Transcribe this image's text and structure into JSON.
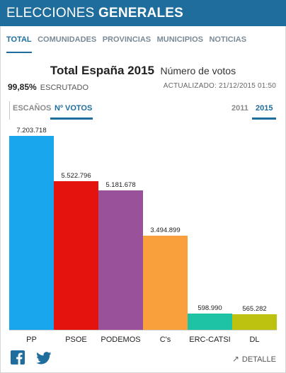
{
  "header": {
    "title_light": "ELECCIONES",
    "title_bold": "GENERALES"
  },
  "tabs": [
    {
      "label": "TOTAL",
      "active": true
    },
    {
      "label": "COMUNIDADES",
      "active": false
    },
    {
      "label": "PROVINCIAS",
      "active": false
    },
    {
      "label": "MUNICIPIOS",
      "active": false
    },
    {
      "label": "NOTICIAS",
      "active": false
    }
  ],
  "summary": {
    "title": "Total España 2015",
    "subtitle": "Número de votos",
    "scrutiny_pct": "99,85%",
    "scrutiny_label": "ESCRUTADO",
    "updated": "ACTUALIZADO: 21/12/2015 01:50"
  },
  "view_toggle": {
    "seats_label": "ESCAÑOS",
    "votes_label": "Nº VOTOS",
    "selected": "votes"
  },
  "year_toggle": {
    "options": [
      "2011",
      "2015"
    ],
    "selected": "2015"
  },
  "chart_data": {
    "type": "bar",
    "title": "Total España 2015",
    "subtitle": "Número de votos",
    "categories": [
      "PP",
      "PSOE",
      "PODEMOS",
      "C's",
      "ERC-CATSI",
      "DL"
    ],
    "values": [
      7203718,
      5522796,
      5181678,
      3494899,
      598990,
      565282
    ],
    "value_labels": [
      "7.203.718",
      "5.522.796",
      "5.181.678",
      "3.494.899",
      "598.990",
      "565.282"
    ],
    "colors": [
      "#1aa6ec",
      "#e5130e",
      "#995199",
      "#f9a03d",
      "#1ec2a4",
      "#bcc20f"
    ],
    "ylim": [
      0,
      7203718
    ],
    "grid": false,
    "legend": "none"
  },
  "footer": {
    "share_icons": [
      "facebook-icon",
      "twitter-icon"
    ],
    "detail_label": "DETALLE"
  }
}
